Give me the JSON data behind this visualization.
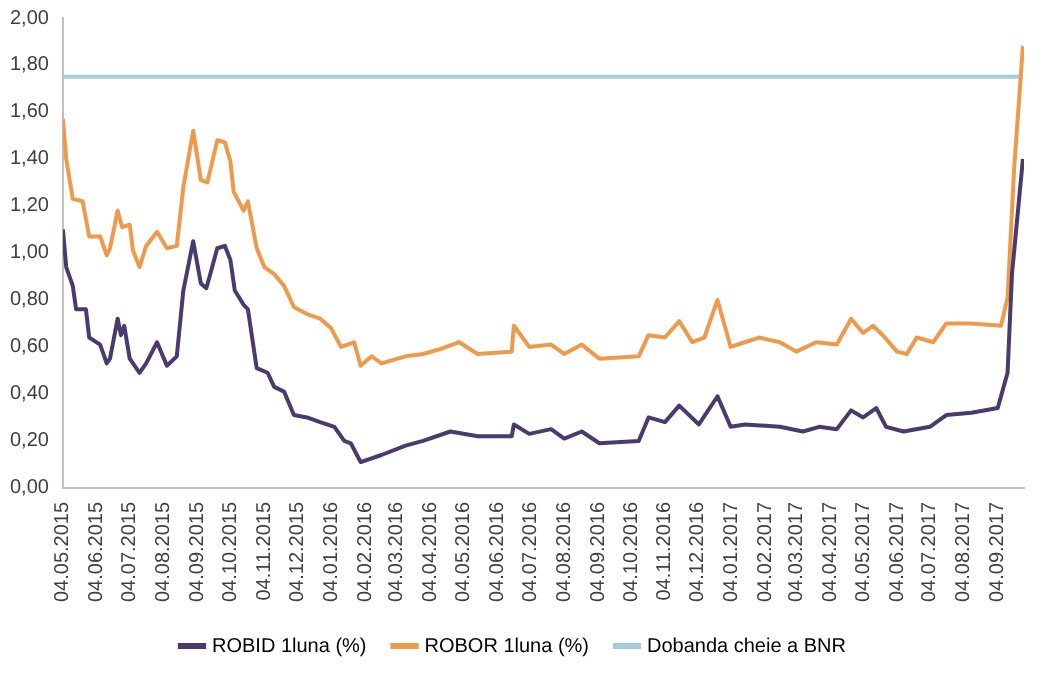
{
  "chart_data": {
    "type": "line",
    "legend": "bottom",
    "grid": false,
    "marker": "none",
    "line_style": "solid",
    "xlim": [
      "2015-05-04",
      "2017-09-28"
    ],
    "xticks": [
      {
        "value": "2015-05-04",
        "label": "04.05.2015"
      },
      {
        "value": "2015-06-04",
        "label": "04.06.2015"
      },
      {
        "value": "2015-07-04",
        "label": "04.07.2015"
      },
      {
        "value": "2015-08-04",
        "label": "04.08.2015"
      },
      {
        "value": "2015-09-04",
        "label": "04.09.2015"
      },
      {
        "value": "2015-10-04",
        "label": "04.10.2015"
      },
      {
        "value": "2015-11-04",
        "label": "04.11.2015"
      },
      {
        "value": "2015-12-04",
        "label": "04.12.2015"
      },
      {
        "value": "2016-01-04",
        "label": "04.01.2016"
      },
      {
        "value": "2016-02-04",
        "label": "04.02.2016"
      },
      {
        "value": "2016-03-04",
        "label": "04.03.2016"
      },
      {
        "value": "2016-04-04",
        "label": "04.04.2016"
      },
      {
        "value": "2016-05-04",
        "label": "04.05.2016"
      },
      {
        "value": "2016-06-04",
        "label": "04.06.2016"
      },
      {
        "value": "2016-07-04",
        "label": "04.07.2016"
      },
      {
        "value": "2016-08-04",
        "label": "04.08.2016"
      },
      {
        "value": "2016-09-04",
        "label": "04.09.2016"
      },
      {
        "value": "2016-10-04",
        "label": "04.10.2016"
      },
      {
        "value": "2016-11-04",
        "label": "04.11.2016"
      },
      {
        "value": "2016-12-04",
        "label": "04.12.2016"
      },
      {
        "value": "2017-01-04",
        "label": "04.01.2017"
      },
      {
        "value": "2017-02-04",
        "label": "04.02.2017"
      },
      {
        "value": "2017-03-04",
        "label": "04.03.2017"
      },
      {
        "value": "2017-04-04",
        "label": "04.04.2017"
      },
      {
        "value": "2017-05-04",
        "label": "04.05.2017"
      },
      {
        "value": "2017-06-04",
        "label": "04.06.2017"
      },
      {
        "value": "2017-07-04",
        "label": "04.07.2017"
      },
      {
        "value": "2017-08-04",
        "label": "04.08.2017"
      },
      {
        "value": "2017-09-04",
        "label": "04.09.2017"
      }
    ],
    "ylim": [
      0,
      2
    ],
    "yticks": [
      {
        "value": 0,
        "label": "0,00"
      },
      {
        "value": 0.2,
        "label": "0,20"
      },
      {
        "value": 0.4,
        "label": "0,40"
      },
      {
        "value": 0.6,
        "label": "0,60"
      },
      {
        "value": 0.8,
        "label": "0,80"
      },
      {
        "value": 1,
        "label": "1,00"
      },
      {
        "value": 1.2,
        "label": "1,20"
      },
      {
        "value": 1.4,
        "label": "1,40"
      },
      {
        "value": 1.6,
        "label": "1,60"
      },
      {
        "value": 1.8,
        "label": "1,80"
      },
      {
        "value": 2,
        "label": "2,00"
      }
    ],
    "series": [
      {
        "name": "ROBID 1luna (%)",
        "color": "#4b3a6e",
        "x": [
          "2015-05-04",
          "2015-05-07",
          "2015-05-13",
          "2015-05-16",
          "2015-05-25",
          "2015-05-28",
          "2015-06-07",
          "2015-06-13",
          "2015-06-16",
          "2015-06-23",
          "2015-06-26",
          "2015-06-29",
          "2015-07-04",
          "2015-07-13",
          "2015-07-19",
          "2015-07-29",
          "2015-08-07",
          "2015-08-16",
          "2015-08-22",
          "2015-08-31",
          "2015-09-07",
          "2015-09-12",
          "2015-09-15",
          "2015-09-22",
          "2015-09-29",
          "2015-10-04",
          "2015-10-08",
          "2015-10-16",
          "2015-10-20",
          "2015-10-28",
          "2015-11-07",
          "2015-11-13",
          "2015-11-22",
          "2015-12-01",
          "2015-12-13",
          "2015-12-25",
          "2016-01-07",
          "2016-01-16",
          "2016-01-22",
          "2016-01-31",
          "2016-02-19",
          "2016-03-12",
          "2016-03-28",
          "2016-04-22",
          "2016-05-17",
          "2016-06-17",
          "2016-06-19",
          "2016-07-03",
          "2016-07-23",
          "2016-08-04",
          "2016-08-20",
          "2016-09-05",
          "2016-10-11",
          "2016-10-20",
          "2016-11-04",
          "2016-11-17",
          "2016-12-05",
          "2016-12-22",
          "2017-01-03",
          "2017-01-16",
          "2017-02-17",
          "2017-03-10",
          "2017-03-25",
          "2017-04-10",
          "2017-04-23",
          "2017-05-04",
          "2017-05-16",
          "2017-05-25",
          "2017-06-10",
          "2017-07-04",
          "2017-07-19",
          "2017-08-11",
          "2017-09-04",
          "2017-09-13",
          "2017-09-17",
          "2017-09-27"
        ],
        "values": [
          1.1,
          0.94,
          0.86,
          0.76,
          0.76,
          0.64,
          0.61,
          0.53,
          0.55,
          0.72,
          0.65,
          0.69,
          0.55,
          0.49,
          0.53,
          0.62,
          0.52,
          0.56,
          0.84,
          1.05,
          0.87,
          0.85,
          0.9,
          1.02,
          1.03,
          0.97,
          0.84,
          0.78,
          0.76,
          0.51,
          0.49,
          0.43,
          0.41,
          0.31,
          0.3,
          0.28,
          0.26,
          0.2,
          0.19,
          0.11,
          0.14,
          0.18,
          0.2,
          0.24,
          0.22,
          0.22,
          0.27,
          0.23,
          0.25,
          0.21,
          0.24,
          0.19,
          0.2,
          0.3,
          0.28,
          0.35,
          0.27,
          0.39,
          0.26,
          0.27,
          0.26,
          0.24,
          0.26,
          0.25,
          0.33,
          0.3,
          0.34,
          0.26,
          0.24,
          0.26,
          0.31,
          0.32,
          0.34,
          0.49,
          0.91,
          1.4
        ]
      },
      {
        "name": "ROBOR 1luna (%)",
        "color": "#ee9a4a",
        "x": [
          "2015-05-04",
          "2015-05-07",
          "2015-05-13",
          "2015-05-22",
          "2015-05-28",
          "2015-06-07",
          "2015-06-13",
          "2015-06-16",
          "2015-06-23",
          "2015-06-27",
          "2015-07-04",
          "2015-07-07",
          "2015-07-13",
          "2015-07-19",
          "2015-07-29",
          "2015-08-07",
          "2015-08-16",
          "2015-08-22",
          "2015-08-31",
          "2015-09-07",
          "2015-09-13",
          "2015-09-16",
          "2015-09-22",
          "2015-09-29",
          "2015-10-04",
          "2015-10-07",
          "2015-10-16",
          "2015-10-20",
          "2015-10-28",
          "2015-11-04",
          "2015-11-13",
          "2015-11-22",
          "2015-12-01",
          "2015-12-13",
          "2015-12-25",
          "2016-01-04",
          "2016-01-13",
          "2016-01-19",
          "2016-01-25",
          "2016-01-31",
          "2016-02-10",
          "2016-02-19",
          "2016-03-12",
          "2016-03-28",
          "2016-04-12",
          "2016-04-30",
          "2016-05-17",
          "2016-06-17",
          "2016-06-19",
          "2016-07-03",
          "2016-07-23",
          "2016-08-04",
          "2016-08-20",
          "2016-09-05",
          "2016-10-11",
          "2016-10-20",
          "2016-11-04",
          "2016-11-17",
          "2016-11-29",
          "2016-12-10",
          "2016-12-22",
          "2017-01-03",
          "2017-01-16",
          "2017-01-29",
          "2017-02-17",
          "2017-03-04",
          "2017-03-22",
          "2017-04-10",
          "2017-04-23",
          "2017-05-04",
          "2017-05-13",
          "2017-05-22",
          "2017-06-04",
          "2017-06-13",
          "2017-06-22",
          "2017-07-07",
          "2017-07-19",
          "2017-08-11",
          "2017-09-07",
          "2017-09-13",
          "2017-09-19",
          "2017-09-27"
        ],
        "values": [
          1.57,
          1.4,
          1.23,
          1.22,
          1.07,
          1.07,
          0.99,
          1.02,
          1.18,
          1.11,
          1.12,
          1.01,
          0.94,
          1.03,
          1.09,
          1.02,
          1.03,
          1.28,
          1.52,
          1.31,
          1.3,
          1.36,
          1.48,
          1.47,
          1.39,
          1.26,
          1.18,
          1.22,
          1.02,
          0.94,
          0.91,
          0.86,
          0.77,
          0.74,
          0.72,
          0.68,
          0.6,
          0.61,
          0.62,
          0.52,
          0.56,
          0.53,
          0.56,
          0.57,
          0.59,
          0.62,
          0.57,
          0.58,
          0.69,
          0.6,
          0.61,
          0.57,
          0.61,
          0.55,
          0.56,
          0.65,
          0.64,
          0.71,
          0.62,
          0.64,
          0.8,
          0.6,
          0.62,
          0.64,
          0.62,
          0.58,
          0.62,
          0.61,
          0.72,
          0.66,
          0.69,
          0.65,
          0.58,
          0.57,
          0.64,
          0.62,
          0.7,
          0.7,
          0.69,
          0.81,
          1.36,
          1.88
        ]
      },
      {
        "name": "Dobanda cheie a BNR",
        "color": "#a9cbd9",
        "x": [
          "2015-05-04",
          "2017-09-27"
        ],
        "values": [
          1.75,
          1.75
        ]
      }
    ]
  }
}
